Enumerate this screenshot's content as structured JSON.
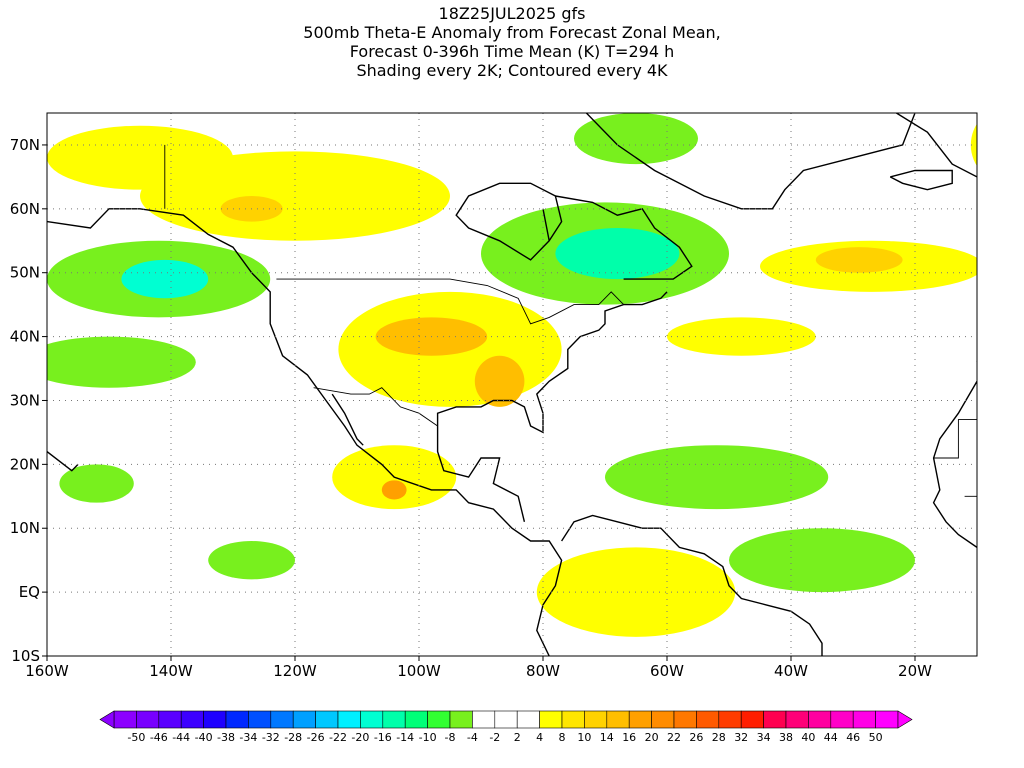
{
  "title": {
    "lines": [
      "18Z25JUL2025 gfs",
      "500mb Theta-E Anomaly from Forecast Zonal Mean,",
      "Forecast 0-396h Time Mean (K) T=294 h",
      "Shading every 2K; Contoured every 4K"
    ]
  },
  "axes": {
    "lon_range": [
      -160,
      -10
    ],
    "lat_range": [
      -10,
      75
    ],
    "x_ticks": [
      {
        "value": -160,
        "label": "160W"
      },
      {
        "value": -140,
        "label": "140W"
      },
      {
        "value": -120,
        "label": "120W"
      },
      {
        "value": -100,
        "label": "100W"
      },
      {
        "value": -80,
        "label": "80W"
      },
      {
        "value": -60,
        "label": "60W"
      },
      {
        "value": -40,
        "label": "40W"
      },
      {
        "value": -20,
        "label": "20W"
      },
      {
        "value": 0,
        "label": "0"
      }
    ],
    "y_ticks": [
      {
        "value": 70,
        "label": "70N"
      },
      {
        "value": 60,
        "label": "60N"
      },
      {
        "value": 50,
        "label": "50N"
      },
      {
        "value": 40,
        "label": "40N"
      },
      {
        "value": 30,
        "label": "30N"
      },
      {
        "value": 20,
        "label": "20N"
      },
      {
        "value": 10,
        "label": "10N"
      },
      {
        "value": 0,
        "label": "EQ"
      },
      {
        "value": -10,
        "label": "10S"
      }
    ],
    "grid": "dotted"
  },
  "colorbar": {
    "labels": [
      "-50",
      "-46",
      "-44",
      "-40",
      "-38",
      "-34",
      "-32",
      "-28",
      "-26",
      "-22",
      "-20",
      "-16",
      "-14",
      "-10",
      "-8",
      "-4",
      "-2",
      "2",
      "4",
      "8",
      "10",
      "14",
      "16",
      "20",
      "22",
      "26",
      "28",
      "32",
      "34",
      "38",
      "40",
      "44",
      "46",
      "50"
    ],
    "colors": [
      "#8c00ff",
      "#7800ff",
      "#5a00ff",
      "#3c00ff",
      "#1e00ff",
      "#0028ff",
      "#0050ff",
      "#0078ff",
      "#00a0ff",
      "#00c8ff",
      "#00f0ff",
      "#00ffd2",
      "#00ffaa",
      "#00ff78",
      "#32ff32",
      "#78f01e",
      "#ffffff",
      "#ffffff",
      "#ffffff",
      "#ffff00",
      "#ffe600",
      "#ffd200",
      "#ffbe00",
      "#ffa000",
      "#ff8c00",
      "#ff7800",
      "#ff5a00",
      "#ff3c00",
      "#ff1e00",
      "#ff0050",
      "#ff0078",
      "#ff00a0",
      "#ff00c8",
      "#ff00e6",
      "#ff00ff"
    ]
  },
  "map": {
    "fields": [
      {
        "type": "positive",
        "level": 4,
        "color": "#ffff00",
        "lon": -145,
        "lat": 68,
        "rlon": 15,
        "rlat": 5
      },
      {
        "type": "positive",
        "level": 4,
        "color": "#ffff00",
        "lon": -120,
        "lat": 62,
        "rlon": 25,
        "rlat": 7
      },
      {
        "type": "positive",
        "level": 8,
        "color": "#ffd200",
        "lon": -127,
        "lat": 60,
        "rlon": 5,
        "rlat": 2
      },
      {
        "type": "positive",
        "level": 4,
        "color": "#ffff00",
        "lon": -95,
        "lat": 38,
        "rlon": 18,
        "rlat": 9
      },
      {
        "type": "positive",
        "level": 10,
        "color": "#ffbe00",
        "lon": -98,
        "lat": 40,
        "rlon": 9,
        "rlat": 3
      },
      {
        "type": "positive",
        "level": 10,
        "color": "#ffbe00",
        "lon": -87,
        "lat": 33,
        "rlon": 4,
        "rlat": 4
      },
      {
        "type": "positive",
        "level": 4,
        "color": "#ffff00",
        "lon": -104,
        "lat": 18,
        "rlon": 10,
        "rlat": 5
      },
      {
        "type": "positive",
        "level": 14,
        "color": "#ffa000",
        "lon": -104,
        "lat": 16,
        "rlon": 2,
        "rlat": 1.5
      },
      {
        "type": "positive",
        "level": 4,
        "color": "#ffff00",
        "lon": -27,
        "lat": 51,
        "rlon": 18,
        "rlat": 4
      },
      {
        "type": "positive",
        "level": 8,
        "color": "#ffd200",
        "lon": -29,
        "lat": 52,
        "rlon": 7,
        "rlat": 2
      },
      {
        "type": "positive",
        "level": 4,
        "color": "#ffff00",
        "lon": -65,
        "lat": 0,
        "rlon": 16,
        "rlat": 7
      },
      {
        "type": "positive",
        "level": 4,
        "color": "#ffff00",
        "lon": -5,
        "lat": 70,
        "rlon": 6,
        "rlat": 6
      },
      {
        "type": "positive",
        "level": 4,
        "color": "#ffff00",
        "lon": -48,
        "lat": 40,
        "rlon": 12,
        "rlat": 3
      },
      {
        "type": "negative",
        "level": -8,
        "color": "#78f01e",
        "lon": -70,
        "lat": 53,
        "rlon": 20,
        "rlat": 8
      },
      {
        "type": "negative",
        "level": -14,
        "color": "#00ffaa",
        "lon": -68,
        "lat": 53,
        "rlon": 10,
        "rlat": 4
      },
      {
        "type": "negative",
        "level": -8,
        "color": "#78f01e",
        "lon": -142,
        "lat": 49,
        "rlon": 18,
        "rlat": 6
      },
      {
        "type": "negative",
        "level": -16,
        "color": "#00ffd2",
        "lon": -141,
        "lat": 49,
        "rlon": 7,
        "rlat": 3
      },
      {
        "type": "negative",
        "level": -8,
        "color": "#78f01e",
        "lon": -150,
        "lat": 36,
        "rlon": 14,
        "rlat": 4
      },
      {
        "type": "negative",
        "level": -8,
        "color": "#78f01e",
        "lon": -52,
        "lat": 18,
        "rlon": 18,
        "rlat": 5
      },
      {
        "type": "negative",
        "level": -8,
        "color": "#78f01e",
        "lon": -35,
        "lat": 5,
        "rlon": 15,
        "rlat": 5
      },
      {
        "type": "negative",
        "level": -8,
        "color": "#78f01e",
        "lon": -65,
        "lat": 71,
        "rlon": 10,
        "rlat": 4
      },
      {
        "type": "negative",
        "level": -8,
        "color": "#78f01e",
        "lon": -127,
        "lat": 5,
        "rlon": 7,
        "rlat": 3
      },
      {
        "type": "negative",
        "level": -8,
        "color": "#78f01e",
        "lon": -152,
        "lat": 17,
        "rlon": 6,
        "rlat": 3
      }
    ]
  }
}
